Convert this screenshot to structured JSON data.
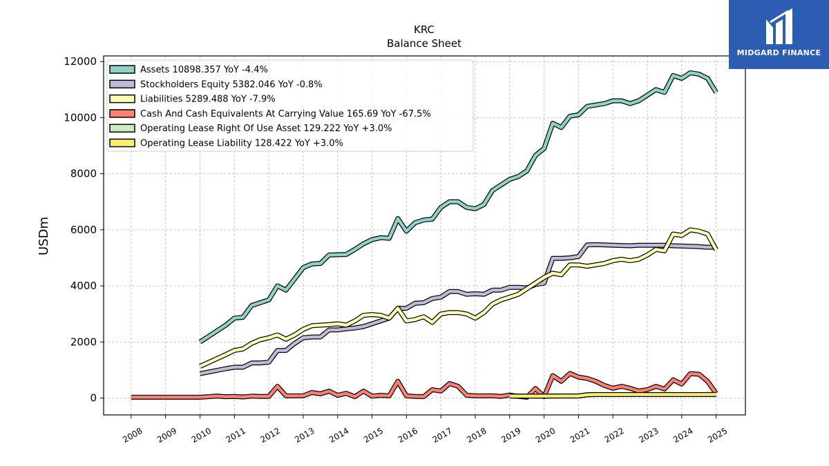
{
  "brand": {
    "name": "MIDGARD FINANCE",
    "bg_color": "#2d5db3"
  },
  "chart_data": {
    "type": "line",
    "title": "KRC",
    "subtitle": "Balance  Sheet",
    "ylabel": "USDm",
    "xlabel": "",
    "xlim": [
      2007.2,
      2025.85
    ],
    "ylim": [
      -600,
      12200
    ],
    "grid": true,
    "legend_position": "top-left",
    "x_ticks": [
      "2008",
      "2009",
      "2010",
      "2011",
      "2012",
      "2013",
      "2014",
      "2015",
      "2016",
      "2017",
      "2018",
      "2019",
      "2020",
      "2021",
      "2022",
      "2023",
      "2024",
      "2025"
    ],
    "y_ticks": [
      "0",
      "2000",
      "4000",
      "6000",
      "8000",
      "10000",
      "12000"
    ],
    "series": [
      {
        "name": "Assets",
        "legend": "Assets  10898.357 YoY -4.4%",
        "color": "#8dd3c7",
        "points": [
          [
            2010.0,
            2000
          ],
          [
            2010.75,
            2600
          ],
          [
            2011.0,
            2850
          ],
          [
            2011.25,
            2880
          ],
          [
            2011.5,
            3300
          ],
          [
            2011.75,
            3400
          ],
          [
            2012.0,
            3500
          ],
          [
            2012.25,
            4000
          ],
          [
            2012.5,
            3850
          ],
          [
            2012.75,
            4250
          ],
          [
            2013.0,
            4650
          ],
          [
            2013.25,
            4780
          ],
          [
            2013.5,
            4800
          ],
          [
            2013.75,
            5100
          ],
          [
            2014.25,
            5120
          ],
          [
            2014.5,
            5300
          ],
          [
            2014.75,
            5500
          ],
          [
            2015.0,
            5650
          ],
          [
            2015.25,
            5720
          ],
          [
            2015.5,
            5700
          ],
          [
            2015.75,
            6400
          ],
          [
            2016.0,
            5950
          ],
          [
            2016.25,
            6250
          ],
          [
            2016.5,
            6350
          ],
          [
            2016.75,
            6380
          ],
          [
            2017.0,
            6800
          ],
          [
            2017.25,
            7000
          ],
          [
            2017.5,
            7000
          ],
          [
            2017.75,
            6800
          ],
          [
            2018.0,
            6750
          ],
          [
            2018.25,
            6900
          ],
          [
            2018.5,
            7400
          ],
          [
            2018.75,
            7600
          ],
          [
            2019.0,
            7800
          ],
          [
            2019.25,
            7900
          ],
          [
            2019.5,
            8100
          ],
          [
            2019.75,
            8650
          ],
          [
            2020.0,
            8900
          ],
          [
            2020.25,
            9800
          ],
          [
            2020.5,
            9650
          ],
          [
            2020.75,
            10050
          ],
          [
            2021.0,
            10100
          ],
          [
            2021.25,
            10400
          ],
          [
            2021.5,
            10450
          ],
          [
            2021.75,
            10500
          ],
          [
            2022.0,
            10600
          ],
          [
            2022.25,
            10600
          ],
          [
            2022.5,
            10500
          ],
          [
            2022.75,
            10600
          ],
          [
            2023.0,
            10800
          ],
          [
            2023.25,
            11000
          ],
          [
            2023.5,
            10900
          ],
          [
            2023.75,
            11500
          ],
          [
            2024.0,
            11400
          ],
          [
            2024.25,
            11600
          ],
          [
            2024.5,
            11550
          ],
          [
            2024.75,
            11400
          ],
          [
            2025.0,
            10898
          ]
        ]
      },
      {
        "name": "Stockholders Equity",
        "legend": "Stockholders Equity  5382.046 YoY -0.8%",
        "color": "#bebada",
        "points": [
          [
            2010.0,
            870
          ],
          [
            2010.75,
            1050
          ],
          [
            2011.0,
            1100
          ],
          [
            2011.25,
            1100
          ],
          [
            2011.5,
            1250
          ],
          [
            2011.75,
            1250
          ],
          [
            2012.0,
            1280
          ],
          [
            2012.25,
            1700
          ],
          [
            2012.5,
            1700
          ],
          [
            2012.75,
            1950
          ],
          [
            2013.0,
            2150
          ],
          [
            2013.25,
            2180
          ],
          [
            2013.5,
            2180
          ],
          [
            2013.75,
            2430
          ],
          [
            2014.0,
            2430
          ],
          [
            2014.25,
            2470
          ],
          [
            2014.5,
            2500
          ],
          [
            2014.75,
            2550
          ],
          [
            2015.0,
            2650
          ],
          [
            2015.25,
            2750
          ],
          [
            2015.5,
            2850
          ],
          [
            2015.75,
            3200
          ],
          [
            2016.0,
            3200
          ],
          [
            2016.25,
            3380
          ],
          [
            2016.5,
            3400
          ],
          [
            2016.75,
            3550
          ],
          [
            2017.0,
            3600
          ],
          [
            2017.25,
            3800
          ],
          [
            2017.5,
            3800
          ],
          [
            2017.75,
            3700
          ],
          [
            2018.0,
            3720
          ],
          [
            2018.25,
            3700
          ],
          [
            2018.5,
            3850
          ],
          [
            2018.75,
            3850
          ],
          [
            2019.0,
            3950
          ],
          [
            2019.25,
            3950
          ],
          [
            2019.5,
            3930
          ],
          [
            2019.75,
            4050
          ],
          [
            2020.0,
            4100
          ],
          [
            2020.25,
            4980
          ],
          [
            2020.5,
            4980
          ],
          [
            2020.75,
            5000
          ],
          [
            2021.0,
            5050
          ],
          [
            2021.25,
            5460
          ],
          [
            2021.5,
            5470
          ],
          [
            2021.75,
            5460
          ],
          [
            2022.0,
            5450
          ],
          [
            2022.25,
            5440
          ],
          [
            2022.5,
            5430
          ],
          [
            2022.75,
            5450
          ],
          [
            2023.0,
            5450
          ],
          [
            2023.25,
            5450
          ],
          [
            2023.5,
            5450
          ],
          [
            2023.75,
            5430
          ],
          [
            2024.0,
            5420
          ],
          [
            2024.25,
            5410
          ],
          [
            2024.5,
            5400
          ],
          [
            2024.75,
            5380
          ],
          [
            2025.0,
            5382
          ]
        ]
      },
      {
        "name": "Liabilities",
        "legend": "Liabilities  5289.488 YoY -7.9%",
        "color": "#ffffb3",
        "points": [
          [
            2010.0,
            1130
          ],
          [
            2010.75,
            1550
          ],
          [
            2011.0,
            1700
          ],
          [
            2011.25,
            1750
          ],
          [
            2011.5,
            1950
          ],
          [
            2011.75,
            2080
          ],
          [
            2012.0,
            2150
          ],
          [
            2012.25,
            2250
          ],
          [
            2012.5,
            2100
          ],
          [
            2012.75,
            2250
          ],
          [
            2013.0,
            2450
          ],
          [
            2013.25,
            2580
          ],
          [
            2013.5,
            2600
          ],
          [
            2013.75,
            2620
          ],
          [
            2014.0,
            2650
          ],
          [
            2014.25,
            2600
          ],
          [
            2014.5,
            2750
          ],
          [
            2014.75,
            2950
          ],
          [
            2015.0,
            2980
          ],
          [
            2015.25,
            2950
          ],
          [
            2015.5,
            2850
          ],
          [
            2015.75,
            3200
          ],
          [
            2016.0,
            2750
          ],
          [
            2016.25,
            2800
          ],
          [
            2016.5,
            2900
          ],
          [
            2016.75,
            2700
          ],
          [
            2017.0,
            3000
          ],
          [
            2017.25,
            3050
          ],
          [
            2017.5,
            3050
          ],
          [
            2017.75,
            3000
          ],
          [
            2018.0,
            2850
          ],
          [
            2018.25,
            3050
          ],
          [
            2018.5,
            3350
          ],
          [
            2018.75,
            3500
          ],
          [
            2019.0,
            3600
          ],
          [
            2019.25,
            3700
          ],
          [
            2019.5,
            3900
          ],
          [
            2019.75,
            4100
          ],
          [
            2020.0,
            4300
          ],
          [
            2020.25,
            4450
          ],
          [
            2020.5,
            4400
          ],
          [
            2020.75,
            4750
          ],
          [
            2021.0,
            4750
          ],
          [
            2021.25,
            4700
          ],
          [
            2021.5,
            4750
          ],
          [
            2021.75,
            4800
          ],
          [
            2022.0,
            4900
          ],
          [
            2022.25,
            4950
          ],
          [
            2022.5,
            4900
          ],
          [
            2022.75,
            4950
          ],
          [
            2023.0,
            5100
          ],
          [
            2023.25,
            5300
          ],
          [
            2023.5,
            5250
          ],
          [
            2023.75,
            5850
          ],
          [
            2024.0,
            5800
          ],
          [
            2024.25,
            6000
          ],
          [
            2024.5,
            5950
          ],
          [
            2024.75,
            5850
          ],
          [
            2025.0,
            5289
          ]
        ]
      },
      {
        "name": "Cash And Cash Equivalents At Carrying Value",
        "legend": "Cash And Cash Equivalents At Carrying Value  165.69 YoY -67.5%",
        "color": "#fb8072",
        "points": [
          [
            2008.0,
            30
          ],
          [
            2009.0,
            30
          ],
          [
            2010.0,
            30
          ],
          [
            2010.5,
            70
          ],
          [
            2010.75,
            50
          ],
          [
            2011.0,
            60
          ],
          [
            2011.25,
            40
          ],
          [
            2011.5,
            70
          ],
          [
            2011.75,
            60
          ],
          [
            2012.0,
            60
          ],
          [
            2012.25,
            420
          ],
          [
            2012.5,
            80
          ],
          [
            2012.75,
            80
          ],
          [
            2013.0,
            80
          ],
          [
            2013.25,
            200
          ],
          [
            2013.5,
            150
          ],
          [
            2013.75,
            250
          ],
          [
            2014.0,
            100
          ],
          [
            2014.25,
            170
          ],
          [
            2014.5,
            50
          ],
          [
            2014.75,
            250
          ],
          [
            2015.0,
            70
          ],
          [
            2015.25,
            100
          ],
          [
            2015.5,
            80
          ],
          [
            2015.75,
            600
          ],
          [
            2016.0,
            80
          ],
          [
            2016.25,
            60
          ],
          [
            2016.5,
            50
          ],
          [
            2016.75,
            300
          ],
          [
            2017.0,
            250
          ],
          [
            2017.25,
            520
          ],
          [
            2017.5,
            420
          ],
          [
            2017.75,
            100
          ],
          [
            2018.0,
            80
          ],
          [
            2018.5,
            80
          ],
          [
            2018.75,
            60
          ],
          [
            2019.0,
            110
          ],
          [
            2019.25,
            60
          ],
          [
            2019.5,
            30
          ],
          [
            2019.75,
            340
          ],
          [
            2020.0,
            50
          ],
          [
            2020.25,
            800
          ],
          [
            2020.5,
            600
          ],
          [
            2020.75,
            880
          ],
          [
            2021.0,
            750
          ],
          [
            2021.25,
            700
          ],
          [
            2021.5,
            600
          ],
          [
            2021.75,
            450
          ],
          [
            2022.0,
            350
          ],
          [
            2022.25,
            420
          ],
          [
            2022.5,
            350
          ],
          [
            2022.75,
            250
          ],
          [
            2023.0,
            300
          ],
          [
            2023.25,
            420
          ],
          [
            2023.5,
            320
          ],
          [
            2023.75,
            650
          ],
          [
            2024.0,
            500
          ],
          [
            2024.25,
            870
          ],
          [
            2024.5,
            850
          ],
          [
            2024.75,
            600
          ],
          [
            2025.0,
            166
          ]
        ]
      },
      {
        "name": "Operating Lease Right Of Use Asset",
        "legend": "Operating Lease Right Of Use Asset  129.222 YoY +3.0%",
        "color": "#ccebc5",
        "points": [
          [
            2019.0,
            70
          ],
          [
            2019.5,
            70
          ],
          [
            2020.0,
            70
          ],
          [
            2020.5,
            75
          ],
          [
            2021.0,
            75
          ],
          [
            2021.25,
            120
          ],
          [
            2021.5,
            125
          ],
          [
            2022.0,
            125
          ],
          [
            2023.0,
            125
          ],
          [
            2024.0,
            126
          ],
          [
            2025.0,
            129
          ]
        ]
      },
      {
        "name": "Operating Lease Liability",
        "legend": "Operating Lease Liability  128.422 YoY +3.0%",
        "color": "#ffed6f",
        "points": [
          [
            2019.0,
            70
          ],
          [
            2019.5,
            70
          ],
          [
            2020.0,
            70
          ],
          [
            2020.5,
            75
          ],
          [
            2021.0,
            75
          ],
          [
            2021.25,
            120
          ],
          [
            2021.5,
            125
          ],
          [
            2022.0,
            125
          ],
          [
            2023.0,
            125
          ],
          [
            2024.0,
            126
          ],
          [
            2025.0,
            128
          ]
        ]
      }
    ]
  }
}
